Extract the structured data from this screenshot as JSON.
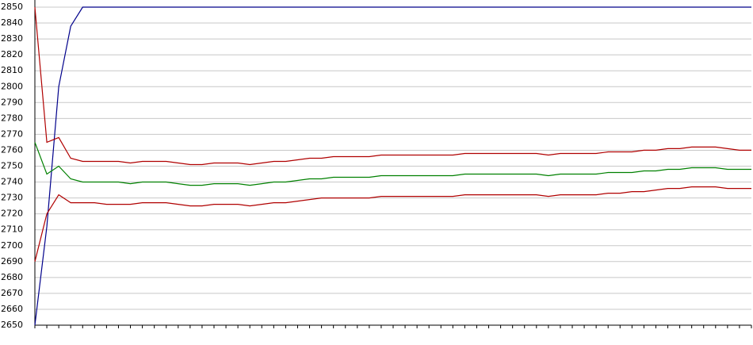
{
  "chart_data": {
    "type": "line",
    "categories": [
      null,
      null,
      null,
      null,
      null,
      null,
      null,
      null,
      null,
      null,
      null,
      null,
      null,
      null,
      null,
      null,
      null,
      null,
      null,
      null,
      null,
      null,
      null,
      null,
      null,
      null,
      null,
      null,
      null,
      null,
      null,
      null,
      null,
      null,
      null,
      null,
      null,
      null,
      null,
      null,
      null,
      null,
      null,
      null,
      null,
      null,
      null,
      null,
      null,
      null,
      null,
      null,
      null,
      null,
      null,
      null,
      null,
      null,
      null,
      null,
      null
    ],
    "series": [
      {
        "color": "#00008b",
        "values": [
          2650,
          2712,
          2800,
          2838,
          2850,
          2850,
          2850,
          2850,
          2850,
          2850,
          2850,
          2850,
          2850,
          2850,
          2850,
          2850,
          2850,
          2850,
          2850,
          2850,
          2850,
          2850,
          2850,
          2850,
          2850,
          2850,
          2850,
          2850,
          2850,
          2850,
          2850,
          2850,
          2850,
          2850,
          2850,
          2850,
          2850,
          2850,
          2850,
          2850,
          2850,
          2850,
          2850,
          2850,
          2850,
          2850,
          2850,
          2850,
          2850,
          2850,
          2850,
          2850,
          2850,
          2850,
          2850,
          2850,
          2850,
          2850,
          2850,
          2850,
          2850
        ]
      },
      {
        "color": "#b00000",
        "values": [
          2850,
          2765,
          2768,
          2755,
          2753,
          2753,
          2753,
          2753,
          2752,
          2753,
          2753,
          2753,
          2752,
          2751,
          2751,
          2752,
          2752,
          2752,
          2751,
          2752,
          2753,
          2753,
          2754,
          2755,
          2755,
          2756,
          2756,
          2756,
          2756,
          2757,
          2757,
          2757,
          2757,
          2757,
          2757,
          2757,
          2758,
          2758,
          2758,
          2758,
          2758,
          2758,
          2758,
          2757,
          2758,
          2758,
          2758,
          2758,
          2759,
          2759,
          2759,
          2760,
          2760,
          2761,
          2761,
          2762,
          2762,
          2762,
          2761,
          2760,
          2760
        ]
      },
      {
        "color": "#008000",
        "values": [
          2765,
          2745,
          2750,
          2742,
          2740,
          2740,
          2740,
          2740,
          2739,
          2740,
          2740,
          2740,
          2739,
          2738,
          2738,
          2739,
          2739,
          2739,
          2738,
          2739,
          2740,
          2740,
          2741,
          2742,
          2742,
          2743,
          2743,
          2743,
          2743,
          2744,
          2744,
          2744,
          2744,
          2744,
          2744,
          2744,
          2745,
          2745,
          2745,
          2745,
          2745,
          2745,
          2745,
          2744,
          2745,
          2745,
          2745,
          2745,
          2746,
          2746,
          2746,
          2747,
          2747,
          2748,
          2748,
          2749,
          2749,
          2749,
          2748,
          2748,
          2748
        ]
      },
      {
        "color": "#b00000",
        "values": [
          2690,
          2720,
          2732,
          2727,
          2727,
          2727,
          2726,
          2726,
          2726,
          2727,
          2727,
          2727,
          2726,
          2725,
          2725,
          2726,
          2726,
          2726,
          2725,
          2726,
          2727,
          2727,
          2728,
          2729,
          2730,
          2730,
          2730,
          2730,
          2730,
          2731,
          2731,
          2731,
          2731,
          2731,
          2731,
          2731,
          2732,
          2732,
          2732,
          2732,
          2732,
          2732,
          2732,
          2731,
          2732,
          2732,
          2732,
          2732,
          2733,
          2733,
          2734,
          2734,
          2735,
          2736,
          2736,
          2737,
          2737,
          2737,
          2736,
          2736,
          2736
        ]
      }
    ],
    "ylim": [
      2650,
      2850
    ],
    "yticks": [
      2650,
      2660,
      2670,
      2680,
      2690,
      2700,
      2710,
      2720,
      2730,
      2740,
      2750,
      2760,
      2770,
      2780,
      2790,
      2800,
      2810,
      2820,
      2830,
      2840,
      2850
    ],
    "grid": true
  }
}
